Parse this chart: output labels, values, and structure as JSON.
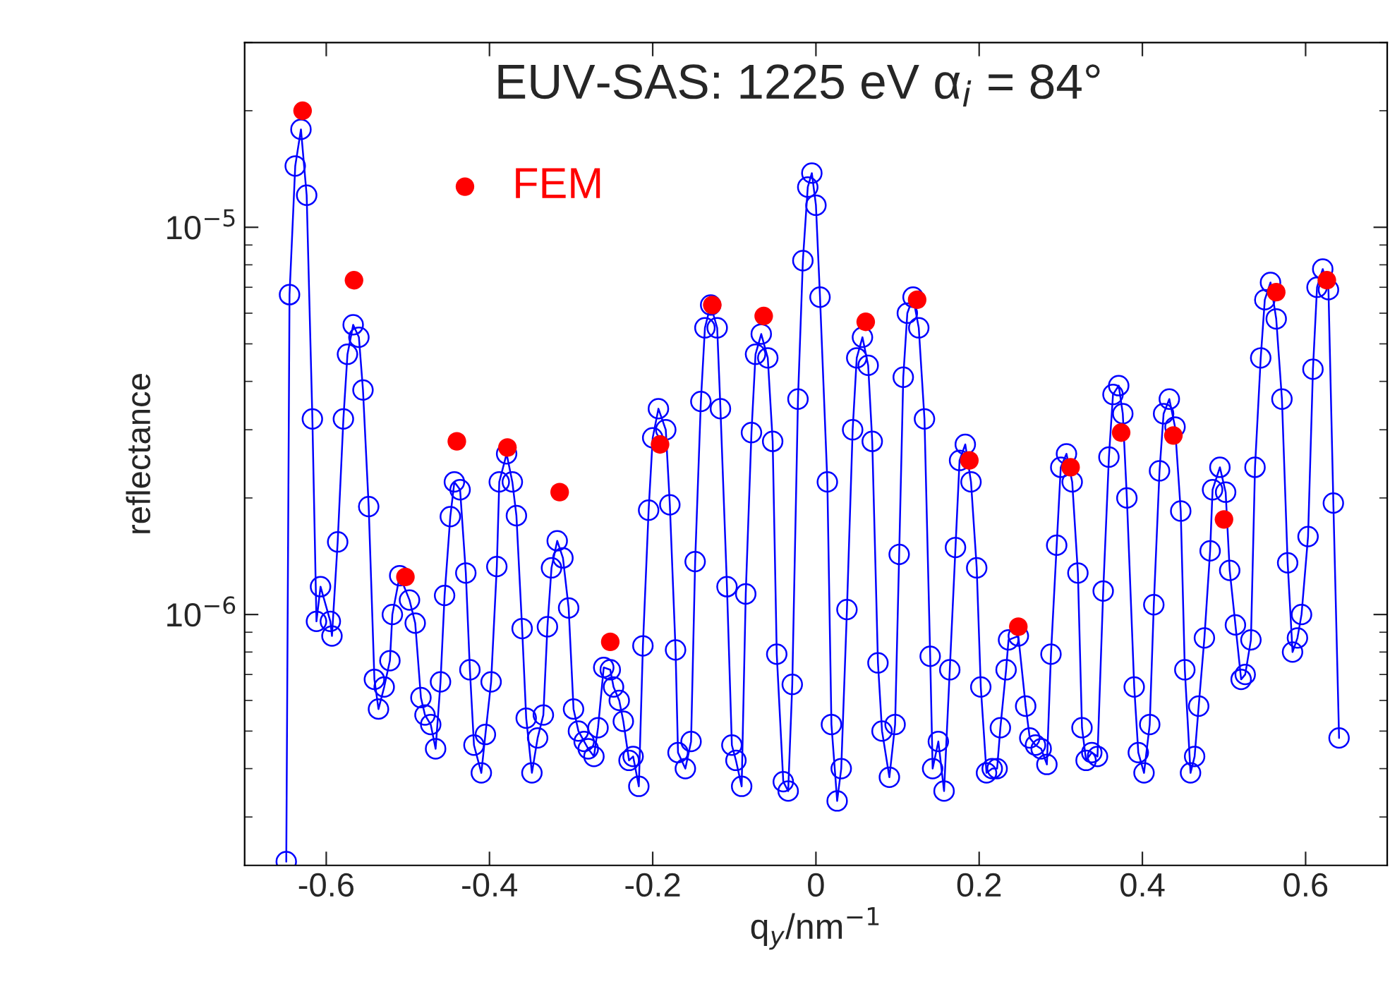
{
  "chart_data": {
    "type": "line",
    "title": "EUV-SAS: 1225 eV α$_{i}$ = 84°",
    "xlabel": "q$_{y}$/nm$^{−1}$",
    "ylabel": "reflectance",
    "log": "y",
    "legend": "top left",
    "xlim": [
      -0.7,
      0.7
    ],
    "ylim": [
      2.25e-07,
      3e-05
    ],
    "xticks": [
      -0.6,
      -0.4,
      -0.2,
      0,
      0.2,
      0.4,
      0.6
    ],
    "yticks": [
      {
        "value": 1e-06,
        "label": "10$^{−6}$"
      },
      {
        "value": 1e-05,
        "label": "10$^{−5}$"
      }
    ],
    "series": [
      {
        "color": "#0000ff",
        "marker": "circle",
        "line_style": "solid",
        "x": [
          -0.649,
          -0.645,
          -0.638,
          -0.631,
          -0.624,
          -0.617,
          -0.612,
          -0.607,
          -0.595,
          -0.593,
          -0.586,
          -0.579,
          -0.574,
          -0.567,
          -0.56,
          -0.555,
          -0.548,
          -0.541,
          -0.536,
          -0.529,
          -0.522,
          -0.519,
          -0.51,
          -0.498,
          -0.491,
          -0.484,
          -0.479,
          -0.472,
          -0.466,
          -0.46,
          -0.455,
          -0.448,
          -0.443,
          -0.436,
          -0.429,
          -0.424,
          -0.419,
          -0.41,
          -0.405,
          -0.398,
          -0.391,
          -0.388,
          -0.379,
          -0.372,
          -0.367,
          -0.36,
          -0.355,
          -0.348,
          -0.341,
          -0.334,
          -0.329,
          -0.324,
          -0.317,
          -0.31,
          -0.303,
          -0.297,
          -0.291,
          -0.284,
          -0.279,
          -0.272,
          -0.267,
          -0.26,
          -0.252,
          -0.248,
          -0.241,
          -0.236,
          -0.229,
          -0.224,
          -0.217,
          -0.212,
          -0.205,
          -0.2,
          -0.193,
          -0.184,
          -0.179,
          -0.172,
          -0.169,
          -0.16,
          -0.153,
          -0.148,
          -0.141,
          -0.136,
          -0.129,
          -0.121,
          -0.117,
          -0.109,
          -0.103,
          -0.098,
          -0.091,
          -0.086,
          -0.079,
          -0.074,
          -0.067,
          -0.059,
          -0.053,
          -0.048,
          -0.04,
          -0.034,
          -0.029,
          -0.022,
          -0.016,
          -0.01,
          -0.005,
          0.0,
          0.005,
          0.014,
          0.019,
          0.026,
          0.031,
          0.038,
          0.045,
          0.05,
          0.057,
          0.064,
          0.069,
          0.076,
          0.081,
          0.09,
          0.097,
          0.102,
          0.107,
          0.112,
          0.119,
          0.126,
          0.133,
          0.14,
          0.143,
          0.15,
          0.157,
          0.164,
          0.171,
          0.176,
          0.183,
          0.19,
          0.197,
          0.202,
          0.209,
          0.216,
          0.222,
          0.226,
          0.233,
          0.236,
          0.248,
          0.257,
          0.262,
          0.269,
          0.276,
          0.283,
          0.288,
          0.295,
          0.3,
          0.307,
          0.314,
          0.321,
          0.326,
          0.331,
          0.338,
          0.345,
          0.352,
          0.359,
          0.364,
          0.371,
          0.376,
          0.381,
          0.39,
          0.395,
          0.402,
          0.409,
          0.414,
          0.421,
          0.426,
          0.433,
          0.44,
          0.447,
          0.452,
          0.459,
          0.464,
          0.469,
          0.476,
          0.483,
          0.486,
          0.495,
          0.502,
          0.507,
          0.514,
          0.521,
          0.526,
          0.533,
          0.538,
          0.545,
          0.55,
          0.557,
          0.564,
          0.571,
          0.578,
          0.584,
          0.59,
          0.595,
          0.603,
          0.609,
          0.614,
          0.621,
          0.628,
          0.634,
          0.641
        ],
        "values": [
          2.3e-07,
          6.7e-06,
          1.44e-05,
          1.79e-05,
          1.21e-05,
          3.2e-06,
          9.6e-07,
          1.18e-06,
          9.6e-07,
          8.8e-07,
          1.54e-06,
          3.2e-06,
          4.7e-06,
          5.6e-06,
          5.2e-06,
          3.8e-06,
          1.9e-06,
          6.8e-07,
          5.7e-07,
          6.5e-07,
          7.6e-07,
          1e-06,
          1.26e-06,
          1.09e-06,
          9.5e-07,
          6.1e-07,
          5.5e-07,
          5.2e-07,
          4.5e-07,
          6.7e-07,
          1.12e-06,
          1.79e-06,
          2.2e-06,
          2.1e-06,
          1.28e-06,
          7.2e-07,
          4.6e-07,
          3.9e-07,
          4.9e-07,
          6.7e-07,
          1.33e-06,
          2.2e-06,
          2.6e-06,
          2.2e-06,
          1.8e-06,
          9.2e-07,
          5.4e-07,
          3.9e-07,
          4.8e-07,
          5.5e-07,
          9.3e-07,
          1.32e-06,
          1.55e-06,
          1.4e-06,
          1.04e-06,
          5.7e-07,
          5e-07,
          4.7e-07,
          4.5e-07,
          4.3e-07,
          5.1e-07,
          7.3e-07,
          7.2e-07,
          6.5e-07,
          6e-07,
          5.3e-07,
          4.2e-07,
          4.3e-07,
          3.6e-07,
          8.3e-07,
          1.86e-06,
          2.86e-06,
          3.4e-06,
          3e-06,
          1.92e-06,
          8.1e-07,
          4.4e-07,
          4e-07,
          4.7e-07,
          1.37e-06,
          3.55e-06,
          5.5e-06,
          6.3e-06,
          5.5e-06,
          3.4e-06,
          1.18e-06,
          4.6e-07,
          4.2e-07,
          3.6e-07,
          1.13e-06,
          2.95e-06,
          4.7e-06,
          5.3e-06,
          4.6e-06,
          2.8e-06,
          7.9e-07,
          3.7e-07,
          3.5e-07,
          6.6e-07,
          3.6e-06,
          8.2e-06,
          1.27e-05,
          1.38e-05,
          1.14e-05,
          6.6e-06,
          2.2e-06,
          5.2e-07,
          3.3e-07,
          4e-07,
          1.03e-06,
          3e-06,
          4.6e-06,
          5.2e-06,
          4.4e-06,
          2.8e-06,
          7.5e-07,
          5e-07,
          3.8e-07,
          5.2e-07,
          1.43e-06,
          4.1e-06,
          6e-06,
          6.6e-06,
          5.5e-06,
          3.2e-06,
          7.8e-07,
          4e-07,
          4.7e-07,
          3.5e-07,
          7.2e-07,
          1.49e-06,
          2.5e-06,
          2.75e-06,
          2.2e-06,
          1.32e-06,
          6.5e-07,
          3.9e-07,
          4e-07,
          4e-07,
          5.1e-07,
          7.2e-07,
          8.6e-07,
          8.8e-07,
          5.8e-07,
          4.8e-07,
          4.6e-07,
          4.5e-07,
          4.1e-07,
          7.9e-07,
          1.51e-06,
          2.4e-06,
          2.6e-06,
          2.2e-06,
          1.28e-06,
          5.1e-07,
          4.2e-07,
          4.4e-07,
          4.3e-07,
          1.15e-06,
          2.55e-06,
          3.7e-06,
          3.9e-06,
          3.3e-06,
          2e-06,
          6.5e-07,
          4.4e-07,
          3.9e-07,
          5.2e-07,
          1.06e-06,
          2.35e-06,
          3.3e-06,
          3.6e-06,
          3.05e-06,
          1.85e-06,
          7.2e-07,
          3.9e-07,
          4.3e-07,
          5.8e-07,
          8.7e-07,
          1.46e-06,
          2.1e-06,
          2.4e-06,
          2.07e-06,
          1.3e-06,
          9.4e-07,
          6.8e-07,
          7e-07,
          8.6e-07,
          2.4e-06,
          4.6e-06,
          6.5e-06,
          7.2e-06,
          5.8e-06,
          3.6e-06,
          1.36e-06,
          8e-07,
          8.7e-07,
          1e-06,
          1.59e-06,
          4.3e-06,
          7e-06,
          7.8e-06,
          6.9e-06,
          1.94e-06,
          4.8e-07
        ]
      },
      {
        "type": "scatter",
        "name": "FEM",
        "color": "#ff0000",
        "marker": "circle",
        "x": [
          -0.629,
          -0.566,
          -0.503,
          -0.44,
          -0.378,
          -0.314,
          -0.252,
          -0.191,
          -0.127,
          -0.064,
          0.061,
          0.124,
          0.188,
          0.248,
          0.312,
          0.374,
          0.438,
          0.5,
          0.564,
          0.626
        ],
        "values": [
          2e-05,
          7.3e-06,
          1.25e-06,
          2.8e-06,
          2.7e-06,
          2.07e-06,
          8.5e-07,
          2.75e-06,
          6.3e-06,
          5.9e-06,
          5.7e-06,
          6.5e-06,
          2.5e-06,
          9.3e-07,
          2.4e-06,
          2.95e-06,
          2.9e-06,
          1.76e-06,
          6.8e-06,
          7.3e-06
        ]
      }
    ]
  }
}
